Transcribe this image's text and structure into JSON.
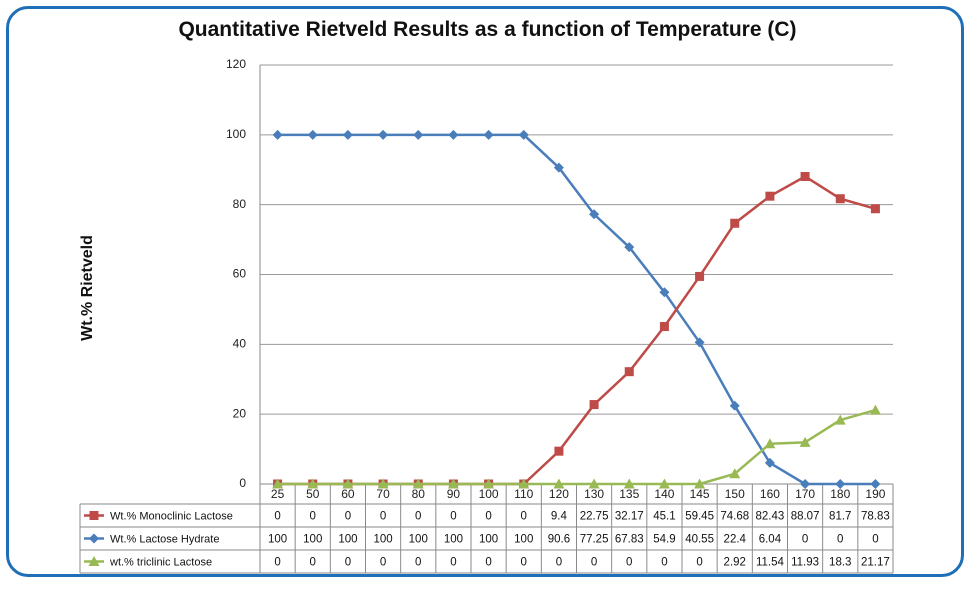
{
  "chart_data": {
    "type": "line",
    "title": "Quantitative Rietveld Results as a function of Temperature (C)",
    "xlabel": "",
    "ylabel": "Wt.%  Rietveld",
    "ylim": [
      0,
      120
    ],
    "yticks": [
      0,
      20,
      40,
      60,
      80,
      100,
      120
    ],
    "grid": true,
    "legend": "data-table-bottom",
    "categories": [
      "25",
      "50",
      "60",
      "70",
      "80",
      "90",
      "100",
      "110",
      "120",
      "130",
      "135",
      "140",
      "145",
      "150",
      "160",
      "170",
      "180",
      "190"
    ],
    "series": [
      {
        "name": "Wt.% Monoclinic Lactose",
        "color": "#be4b48",
        "marker": "square",
        "values": [
          0,
          0,
          0,
          0,
          0,
          0,
          0,
          0,
          9.4,
          22.75,
          32.17,
          45.1,
          59.45,
          74.68,
          82.43,
          88.07,
          81.7,
          78.83
        ]
      },
      {
        "name": "Wt.% Lactose Hydrate",
        "color": "#4a7ebb",
        "marker": "diamond",
        "values": [
          100,
          100,
          100,
          100,
          100,
          100,
          100,
          100,
          90.6,
          77.25,
          67.83,
          54.9,
          40.55,
          22.4,
          6.04,
          0,
          0,
          0
        ]
      },
      {
        "name": "wt.% triclinic Lactose",
        "color": "#98b954",
        "marker": "triangle",
        "values": [
          0,
          0,
          0,
          0,
          0,
          0,
          0,
          0,
          0,
          0,
          0,
          0,
          0,
          2.92,
          11.54,
          11.93,
          18.3,
          21.17
        ]
      }
    ]
  }
}
